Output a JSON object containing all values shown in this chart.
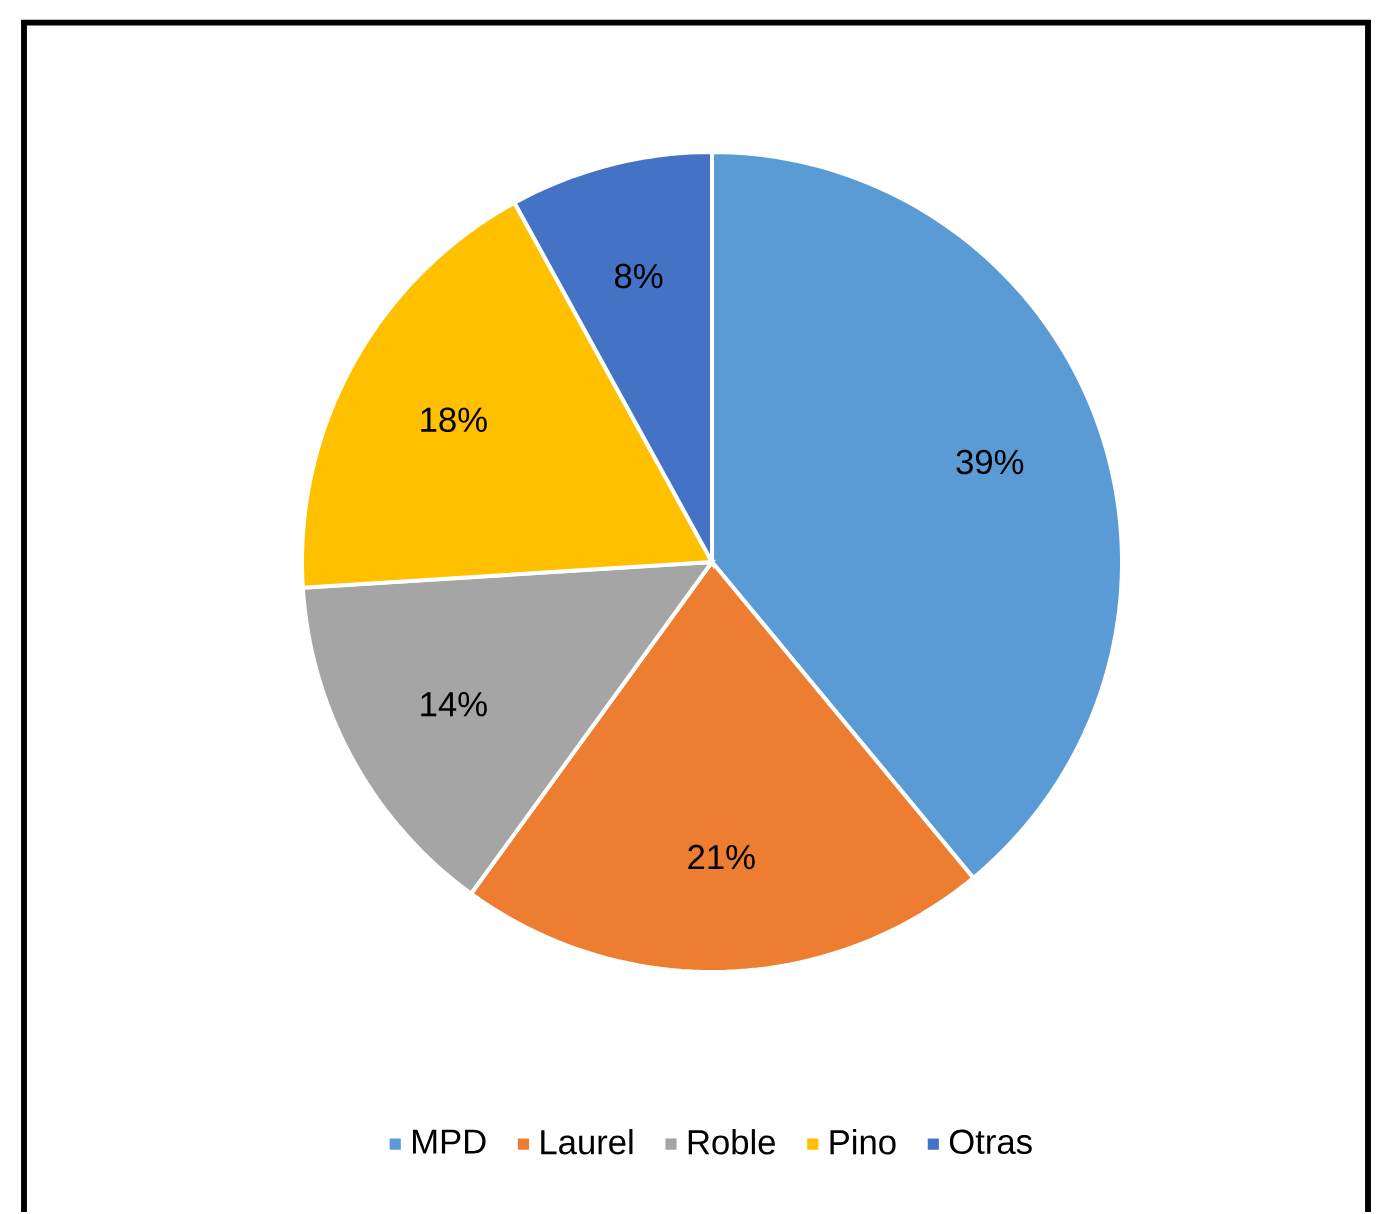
{
  "chart_data": {
    "type": "pie",
    "categories": [
      "MPD",
      "Laurel",
      "Roble",
      "Pino",
      "Otras"
    ],
    "values": [
      39,
      21,
      14,
      18,
      8
    ],
    "value_labels": [
      "39%",
      "21%",
      "14%",
      "18%",
      "8%"
    ],
    "colors": [
      "#5b9bd5",
      "#ed7d31",
      "#a5a5a5",
      "#ffc000",
      "#4472c4"
    ],
    "legend": "bottom"
  }
}
